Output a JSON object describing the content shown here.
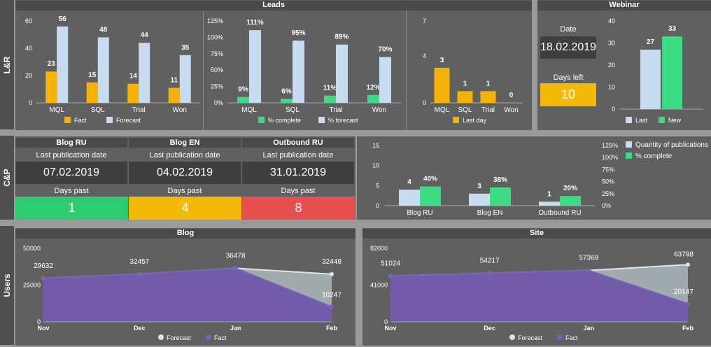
{
  "sections": {
    "lr": "L&R",
    "cp": "C&P",
    "users": "Users"
  },
  "headers": {
    "leads": "Leads",
    "webinar": "Webinar",
    "blog": "Blog",
    "site": "Site"
  },
  "colors": {
    "fact": "#f5b30a",
    "forecast": "#c8dcf0",
    "complete": "#3ddc84",
    "purple": "#6a4ea8",
    "green_box": "#2ecc71",
    "yellow_box": "#f5b90a",
    "red_box": "#e84f4f"
  },
  "webinar": {
    "date_label": "Date",
    "date_value": "18.02.2019",
    "days_left_label": "Days left",
    "days_left_value": "10"
  },
  "publications": [
    {
      "title": "Blog RU",
      "date_label": "Last publication date",
      "date": "07.02.2019",
      "days_label": "Days past",
      "days": "1",
      "status": "green"
    },
    {
      "title": "Blog EN",
      "date_label": "Last publication date",
      "date": "04.02.2019",
      "days_label": "Days past",
      "days": "4",
      "status": "yellow"
    },
    {
      "title": "Outbound RU",
      "date_label": "Last publication date",
      "date": "31.01.2019",
      "days_label": "Days past",
      "days": "8",
      "status": "red"
    }
  ],
  "chart_data": [
    {
      "type": "bar",
      "id": "leads_counts",
      "categories": [
        "MQL",
        "SQL",
        "Trial",
        "Won"
      ],
      "ylim": [
        0,
        60
      ],
      "yticks": [
        0,
        20,
        40,
        60
      ],
      "series": [
        {
          "name": "Fact",
          "values": [
            23,
            15,
            14,
            11
          ]
        },
        {
          "name": "Forecast",
          "values": [
            56,
            48,
            44,
            35
          ]
        }
      ]
    },
    {
      "type": "bar",
      "id": "leads_percent",
      "categories": [
        "MQL",
        "SQL",
        "Trial",
        "Won"
      ],
      "ylim": [
        0,
        125
      ],
      "yticks": [
        "0%",
        "25%",
        "50%",
        "75%",
        "100%",
        "125%"
      ],
      "series": [
        {
          "name": "% complete",
          "values": [
            9,
            6,
            11,
            12
          ]
        },
        {
          "name": "% forecast",
          "values": [
            111,
            95,
            89,
            70
          ]
        }
      ]
    },
    {
      "type": "bar",
      "id": "leads_lastday",
      "categories": [
        "MQL",
        "SQL",
        "Trial",
        "Won"
      ],
      "ylim": [
        0,
        7
      ],
      "yticks": [
        0,
        4,
        7
      ],
      "series": [
        {
          "name": "Last day",
          "values": [
            3,
            1,
            1,
            0
          ]
        }
      ]
    },
    {
      "type": "bar",
      "id": "webinar",
      "categories": [
        ""
      ],
      "ylim": [
        0,
        40
      ],
      "yticks": [
        0,
        10,
        20,
        30,
        40
      ],
      "series": [
        {
          "name": "Last",
          "values": [
            27
          ]
        },
        {
          "name": "New",
          "values": [
            33
          ]
        }
      ]
    },
    {
      "type": "bar",
      "id": "publications",
      "categories": [
        "Blog RU",
        "Blog EN",
        "Outbound RU"
      ],
      "ylim": [
        0,
        15
      ],
      "yticks": [
        0,
        5,
        10,
        15
      ],
      "y2ticks": [
        "0%",
        "25%",
        "50%",
        "75%",
        "100%",
        "125%"
      ],
      "series": [
        {
          "name": "Quantity of publications",
          "values": [
            4,
            3,
            1
          ]
        },
        {
          "name": "% complete",
          "values": [
            40,
            38,
            20
          ],
          "labels": [
            "40%",
            "38%",
            "20%"
          ]
        }
      ]
    },
    {
      "type": "area",
      "id": "blog",
      "x": [
        "Nov",
        "Dec",
        "Jan",
        "Feb"
      ],
      "ylim": [
        0,
        50000
      ],
      "yticks": [
        "0",
        "25000",
        "50000"
      ],
      "series": [
        {
          "name": "Forecast",
          "values": [
            29632,
            32457,
            36478,
            32448
          ]
        },
        {
          "name": "Fact",
          "values": [
            29632,
            32457,
            36478,
            10247
          ]
        }
      ],
      "labels": [
        "29632",
        "32457",
        "36478",
        "32448",
        "10247"
      ]
    },
    {
      "type": "area",
      "id": "site",
      "x": [
        "Nov",
        "Dec",
        "Jan",
        "Feb"
      ],
      "ylim": [
        0,
        82000
      ],
      "yticks": [
        "0",
        "41000",
        "82000"
      ],
      "series": [
        {
          "name": "Forecast",
          "values": [
            51024,
            54217,
            57369,
            63798
          ]
        },
        {
          "name": "Fact",
          "values": [
            51024,
            54217,
            57369,
            20147
          ]
        }
      ],
      "labels": [
        "51024",
        "54217",
        "57369",
        "63798",
        "20147"
      ]
    }
  ]
}
